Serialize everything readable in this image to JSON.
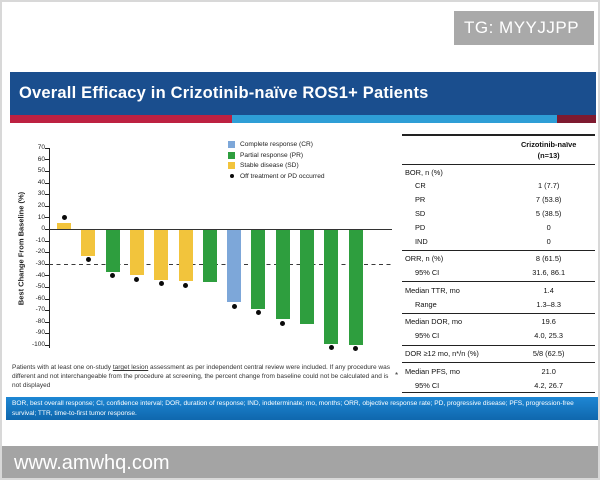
{
  "watermarks": {
    "tag": "TG: MYYJJPP",
    "site": "www.amwhq.com"
  },
  "slide": {
    "title": "Overall Efficacy in Crizotinib-naïve ROS1+ Patients"
  },
  "legend": [
    {
      "shape": "square",
      "color": "#7da7d9",
      "label": "Complete response (CR)"
    },
    {
      "shape": "square",
      "color": "#2e9e3e",
      "label": "Partial response (PR)"
    },
    {
      "shape": "square",
      "color": "#f2c43c",
      "label": "Stable disease (SD)"
    },
    {
      "shape": "dot",
      "color": "#0a0a0a",
      "label": "Off treatment or PD occurred"
    }
  ],
  "chart_data": {
    "type": "bar",
    "subtype": "waterfall",
    "title": "Overall Efficacy in Crizotinib-naïve ROS1+ Patients",
    "xlabel": "",
    "ylabel": "Best Change From Baseline (%)",
    "ylim": [
      -100,
      70
    ],
    "ytick_step": 10,
    "reference_line_y": -30,
    "grid": false,
    "legend_position": "top-center",
    "series": [
      {
        "patient": 1,
        "best_change_pct": 5,
        "response": "SD",
        "off_treatment_or_pd": true
      },
      {
        "patient": 2,
        "best_change_pct": -23,
        "response": "SD",
        "off_treatment_or_pd": true
      },
      {
        "patient": 3,
        "best_change_pct": -37,
        "response": "PR",
        "off_treatment_or_pd": true
      },
      {
        "patient": 4,
        "best_change_pct": -40,
        "response": "SD",
        "off_treatment_or_pd": true
      },
      {
        "patient": 5,
        "best_change_pct": -44,
        "response": "SD",
        "off_treatment_or_pd": true
      },
      {
        "patient": 6,
        "best_change_pct": -45,
        "response": "SD",
        "off_treatment_or_pd": true
      },
      {
        "patient": 7,
        "best_change_pct": -46,
        "response": "PR",
        "off_treatment_or_pd": false
      },
      {
        "patient": 8,
        "best_change_pct": -63,
        "response": "CR",
        "off_treatment_or_pd": true
      },
      {
        "patient": 9,
        "best_change_pct": -69,
        "response": "PR",
        "off_treatment_or_pd": true
      },
      {
        "patient": 10,
        "best_change_pct": -78,
        "response": "PR",
        "off_treatment_or_pd": true
      },
      {
        "patient": 11,
        "best_change_pct": -82,
        "response": "PR",
        "off_treatment_or_pd": false
      },
      {
        "patient": 12,
        "best_change_pct": -99,
        "response": "PR",
        "off_treatment_or_pd": true
      },
      {
        "patient": 13,
        "best_change_pct": -100,
        "response": "PR",
        "off_treatment_or_pd": true
      }
    ]
  },
  "footnote": {
    "part1": "Patients with at least one on-study ",
    "target_lesion": "target lesion",
    "part2": " assessment as per independent central review were included. If any procedure was different and not interchangeable from the procedure at screening, the percent change from baseline could not be calculated and is not displayed",
    "marker": "*"
  },
  "abbreviations": "BOR, best overall response; CI, confidence interval; DOR, duration of response; IND, indeterminate; mo, months; ORR, objective response rate; PD, progressive disease; PFS, progression-free survival; TTR, time-to-first tumor response.",
  "table": {
    "header_line1": "Crizotinib-naïve",
    "header_line2": "(n=13)",
    "rows": [
      {
        "label": "BOR, n (%)",
        "value": "",
        "indent": false,
        "divider": false
      },
      {
        "label": "CR",
        "value": "1 (7.7)",
        "indent": true,
        "divider": false
      },
      {
        "label": "PR",
        "value": "7 (53.8)",
        "indent": true,
        "divider": false
      },
      {
        "label": "SD",
        "value": "5 (38.5)",
        "indent": true,
        "divider": false
      },
      {
        "label": "PD",
        "value": "0",
        "indent": true,
        "divider": false
      },
      {
        "label": "IND",
        "value": "0",
        "indent": true,
        "divider": false
      },
      {
        "label": "ORR, n (%)",
        "value": "8 (61.5)",
        "indent": false,
        "divider": true
      },
      {
        "label": "95% CI",
        "value": "31.6, 86.1",
        "indent": true,
        "divider": false
      },
      {
        "label": "Median TTR, mo",
        "value": "1.4",
        "indent": false,
        "divider": true
      },
      {
        "label": "Range",
        "value": "1.3–8.3",
        "indent": true,
        "divider": false
      },
      {
        "label": "Median DOR, mo",
        "value": "19.6",
        "indent": false,
        "divider": true
      },
      {
        "label": "95% CI",
        "value": "4.0, 25.3",
        "indent": true,
        "divider": false
      },
      {
        "label": "DOR ≥12 mo, n*/n (%)",
        "value": "5/8 (62.5)",
        "indent": false,
        "divider": true
      },
      {
        "label": "Median PFS, mo",
        "value": "21.0",
        "indent": false,
        "divider": true
      },
      {
        "label": "95% CI",
        "value": "4.2, 26.7",
        "indent": true,
        "divider": false
      }
    ]
  },
  "colors": {
    "cr_blue": "#7da7d9",
    "pr_green": "#2e9e3e",
    "sd_yellow": "#f2c43c",
    "title_bar_blue": "#1a4e8e",
    "stripe_red": "#bd2141",
    "stripe_light_blue": "#2e9ed6",
    "stripe_maroon": "#7e1a30",
    "abbrev_bar_blue": "#1378c8",
    "dot_black": "#0a0a0a"
  }
}
